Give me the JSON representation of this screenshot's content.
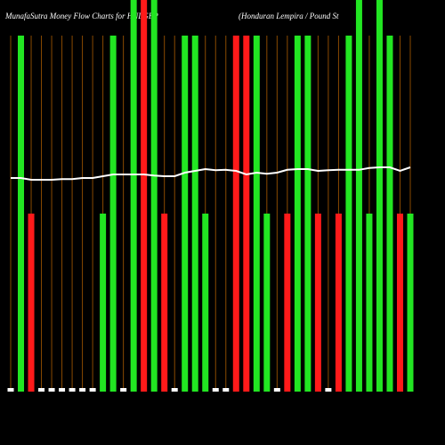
{
  "chart_data": {
    "type": "bar",
    "title": "MunafaSutra  Money Flow  Charts for HNLGBP",
    "subtitle": "(Honduran  Lempira  / Pound St",
    "categories": [
      null,
      null,
      null,
      null,
      null,
      null,
      null,
      null,
      null,
      null,
      null,
      null,
      null,
      null,
      null,
      null,
      null,
      null,
      null,
      null,
      null,
      null,
      null,
      null,
      null,
      null,
      null,
      null,
      null,
      null,
      null,
      null,
      null,
      null,
      null,
      null,
      null,
      null,
      null,
      null
    ],
    "values": [
      1,
      100,
      50,
      1,
      1,
      1,
      1,
      1,
      1,
      50,
      100,
      1,
      110,
      110,
      110,
      50,
      1,
      100,
      100,
      50,
      1,
      1,
      100,
      100,
      100,
      50,
      1,
      50,
      100,
      100,
      50,
      1,
      50,
      100,
      110,
      50,
      110,
      100,
      50,
      50
    ],
    "colors": [
      "#ffffff",
      "#22e622",
      "#ff1a1a",
      "#ffffff",
      "#ffffff",
      "#ffffff",
      "#ffffff",
      "#ffffff",
      "#ffffff",
      "#22e622",
      "#22e622",
      "#ffffff",
      "#22e622",
      "#ff1a1a",
      "#22e622",
      "#ff1a1a",
      "#ffffff",
      "#22e622",
      "#22e622",
      "#22e622",
      "#ffffff",
      "#ffffff",
      "#ff1a1a",
      "#ff1a1a",
      "#22e622",
      "#22e622",
      "#ffffff",
      "#ff1a1a",
      "#22e622",
      "#22e622",
      "#ff1a1a",
      "#ffffff",
      "#ff1a1a",
      "#22e622",
      "#22e622",
      "#22e622",
      "#22e622",
      "#22e622",
      "#ff1a1a",
      "#22e622"
    ],
    "line": {
      "color": "#ffffff",
      "values": [
        60,
        60,
        59.5,
        59.5,
        59.5,
        59.7,
        59.7,
        60,
        60,
        60.5,
        61,
        61,
        61,
        61,
        60.7,
        60.5,
        60.5,
        61.5,
        62,
        62.5,
        62.2,
        62.3,
        62,
        61,
        61.5,
        61.2,
        61.5,
        62.3,
        62.5,
        62.5,
        62,
        62.2,
        62.3,
        62.3,
        62.3,
        62.8,
        63,
        63,
        62,
        63
      ]
    },
    "ylim": [
      0,
      110
    ],
    "gridline_color": "#8a4a00"
  }
}
